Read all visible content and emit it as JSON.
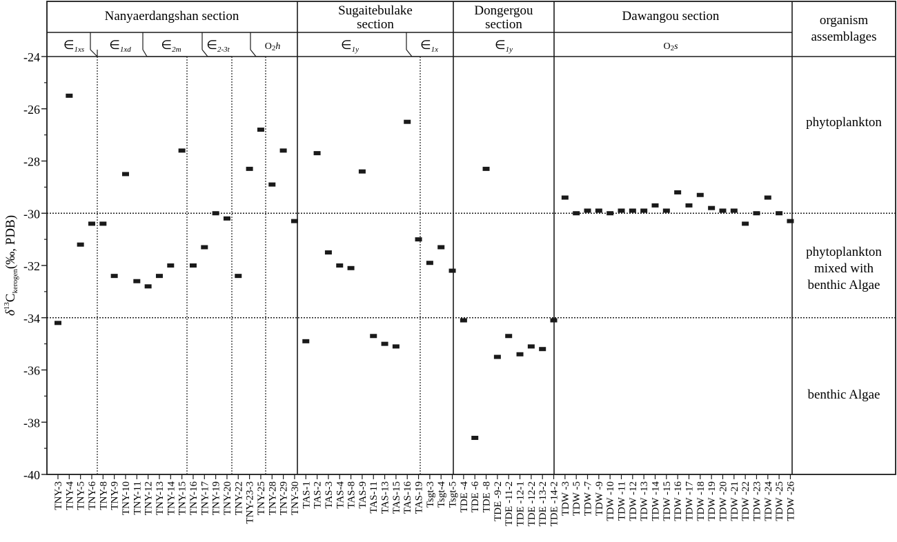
{
  "chart_data": {
    "type": "scatter",
    "ylabel": {
      "prefix": "δ",
      "sup": "13",
      "main": "C",
      "sub": "kerogen",
      "suffix": "(‰, PDB)"
    },
    "ylim": [
      -40,
      -24
    ],
    "yticks": [
      -24,
      -26,
      -28,
      -30,
      -32,
      -34,
      -36,
      -38,
      -40
    ],
    "grid": false,
    "reference_lines": [
      -30,
      -34
    ],
    "sections": [
      {
        "title_lines": [
          "Nanyaerdangshan  section"
        ],
        "stages": [
          "∈1xs",
          "∈1xd",
          "∈2m",
          "∈2-3t",
          "O2h"
        ]
      },
      {
        "title_lines": [
          "Sugaitebulake",
          "section"
        ],
        "stages": [
          "∈1y",
          "∈1x"
        ]
      },
      {
        "title_lines": [
          "Dongergou",
          "section"
        ],
        "stages": [
          "∈1y"
        ]
      },
      {
        "title_lines": [
          "Dawangou  section"
        ],
        "stages": [
          "O2s"
        ]
      }
    ],
    "stage_labels": [
      {
        "base": "∈",
        "sub": "1xs"
      },
      {
        "base": "∈",
        "sub": "1xd"
      },
      {
        "base": "∈",
        "sub": "2m"
      },
      {
        "base": "∈",
        "sub": "2-3t"
      },
      {
        "base": "O",
        "sub": "2",
        "tail": "h"
      },
      {
        "base": "∈",
        "sub": "1y"
      },
      {
        "base": "∈",
        "sub": "1x"
      },
      {
        "base": "∈",
        "sub": "1y"
      },
      {
        "base": "O",
        "sub": "2",
        "tail": "s"
      }
    ],
    "assemblage_header": [
      "organism",
      "assemblages"
    ],
    "assemblages": [
      {
        "lines": [
          "phytoplankton"
        ]
      },
      {
        "lines": [
          "phytoplankton",
          "mixed with",
          "benthic  Algae"
        ]
      },
      {
        "lines": [
          "benthic  Algae"
        ]
      }
    ],
    "samples": [
      "TNY-3",
      "TNY-4",
      "TNY-5",
      "TNY-6",
      "TNY-8",
      "TNY-9",
      "TNY-10",
      "TNY-11",
      "TNY-12",
      "TNY-13",
      "TNY-14",
      "TNY-15",
      "TNY-16",
      "TNY-17",
      "TNY-19",
      "TNY-20",
      "TNY-22",
      "TNY-23-3",
      "TNY-25",
      "TNY-28",
      "TNY-29",
      "TNY-30",
      "TAS-1",
      "TAS-2",
      "TAS-3",
      "TAS-4",
      "TAS-8",
      "TAS-9",
      "TAS-11",
      "TAS-13",
      "TAS-15",
      "TAS-16",
      "TAS-19",
      "Tsgt-3",
      "Tsgt-4",
      "Tsgt-5",
      "TDE -4",
      "TDE -6",
      "TDE -8",
      "TDE -9-2",
      "TDE -11-2",
      "TDE -12-1",
      "TDE -12-2",
      "TDE -13-2",
      "TDE -14-2",
      "TDW -3",
      "TDW -5",
      "TDW -7",
      "TDW -9",
      "TDW -10",
      "TDW -11",
      "TDW -12",
      "TDW -13",
      "TDW -14",
      "TDW -15",
      "TDW -16",
      "TDW -17",
      "TDW -18",
      "TDW -19",
      "TDW -20",
      "TDW -21",
      "TDW -22",
      "TDW -23",
      "TDW -24",
      "TDW -25",
      "TDW -26"
    ],
    "values": [
      -34.2,
      -25.5,
      -31.2,
      -30.4,
      -30.4,
      -32.4,
      -28.5,
      -32.6,
      -32.8,
      -32.4,
      -32.0,
      -27.6,
      -32.0,
      -31.3,
      -30.0,
      -30.2,
      -32.4,
      -28.3,
      -26.8,
      -28.9,
      -27.6,
      -30.3,
      -34.9,
      -27.7,
      -31.5,
      -32.0,
      -32.1,
      -28.4,
      -34.7,
      -35.0,
      -35.1,
      -26.5,
      -31.0,
      -31.9,
      -31.3,
      -32.2,
      -34.1,
      -38.6,
      -28.3,
      -35.5,
      -34.7,
      -35.4,
      -35.1,
      -35.2,
      -34.1,
      -29.4,
      -30.0,
      -29.9,
      -29.9,
      -30.0,
      -29.9,
      -29.9,
      -29.9,
      -29.7,
      -29.9,
      -29.2,
      -29.7,
      -29.3,
      -29.8,
      -29.9,
      -29.9,
      -30.4,
      -30.0,
      -29.4,
      -30.0,
      -30.3
    ]
  }
}
